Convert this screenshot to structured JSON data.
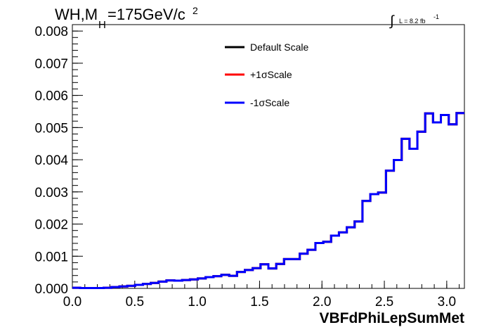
{
  "chart_data": {
    "type": "line",
    "title": {
      "main": "WH,M",
      "subscript": "H",
      "rest": "=175GeV/c",
      "superscript": "2"
    },
    "lumi": {
      "integral": "∫",
      "text": "L = 8.2 fb",
      "superscript": "-1"
    },
    "xlabel": "VBFdPhiLepSumMet",
    "ylabel": "",
    "xlim": [
      0.0,
      3.14159
    ],
    "ylim": [
      0.0,
      0.0082
    ],
    "xticks": [
      "0.0",
      "0.5",
      "1.0",
      "1.5",
      "2.0",
      "2.5",
      "3.0"
    ],
    "xtick_values": [
      0.0,
      0.5,
      1.0,
      1.5,
      2.0,
      2.5,
      3.0
    ],
    "yticks": [
      "0.000",
      "0.001",
      "0.002",
      "0.003",
      "0.004",
      "0.005",
      "0.006",
      "0.007",
      "0.008"
    ],
    "ytick_values": [
      0.0,
      0.001,
      0.002,
      0.003,
      0.004,
      0.005,
      0.006,
      0.007,
      0.008
    ],
    "bins": 50,
    "series": [
      {
        "name": "Default Scale",
        "color": "#000000",
        "values": [
          2e-05,
          1e-05,
          1e-05,
          1e-05,
          2e-05,
          4e-05,
          6e-05,
          8e-05,
          0.00011,
          0.00014,
          0.00017,
          0.00021,
          0.00025,
          0.00024,
          0.00026,
          0.00028,
          0.00031,
          0.00035,
          0.00038,
          0.00042,
          0.00039,
          0.00051,
          0.00057,
          0.00063,
          0.00075,
          0.00062,
          0.00076,
          0.00091,
          0.00091,
          0.00108,
          0.0012,
          0.00141,
          0.00145,
          0.00164,
          0.00174,
          0.0019,
          0.00208,
          0.00272,
          0.00293,
          0.00298,
          0.00366,
          0.00399,
          0.00465,
          0.00434,
          0.00487,
          0.00544,
          0.00516,
          0.00539,
          0.0051,
          0.00545
        ]
      },
      {
        "name": "+1σScale",
        "color": "#ff0000",
        "values": [
          2e-05,
          1e-05,
          1e-05,
          1e-05,
          2e-05,
          4e-05,
          6e-05,
          8e-05,
          0.00011,
          0.00014,
          0.00017,
          0.00021,
          0.00025,
          0.00024,
          0.00026,
          0.00028,
          0.00031,
          0.00035,
          0.00038,
          0.00042,
          0.00039,
          0.00051,
          0.00057,
          0.00063,
          0.00075,
          0.00062,
          0.00076,
          0.00091,
          0.00091,
          0.00108,
          0.0012,
          0.00141,
          0.00145,
          0.00164,
          0.00174,
          0.0019,
          0.00208,
          0.00272,
          0.00293,
          0.00298,
          0.00366,
          0.00399,
          0.00465,
          0.00434,
          0.00487,
          0.00544,
          0.00516,
          0.00539,
          0.0051,
          0.00545
        ]
      },
      {
        "name": "-1σScale",
        "color": "#0000ff",
        "values": [
          2e-05,
          1e-05,
          1e-05,
          1e-05,
          2e-05,
          4e-05,
          6e-05,
          8e-05,
          0.00011,
          0.00014,
          0.00017,
          0.00021,
          0.00025,
          0.00024,
          0.00026,
          0.00028,
          0.00031,
          0.00035,
          0.00038,
          0.00042,
          0.00039,
          0.00051,
          0.00057,
          0.00063,
          0.00075,
          0.00062,
          0.00076,
          0.00091,
          0.00091,
          0.00108,
          0.0012,
          0.00141,
          0.00145,
          0.00164,
          0.00174,
          0.0019,
          0.00208,
          0.00272,
          0.00293,
          0.00298,
          0.00366,
          0.00399,
          0.00465,
          0.00434,
          0.00487,
          0.00544,
          0.00516,
          0.00539,
          0.0051,
          0.00545
        ]
      }
    ],
    "legend": {
      "placement": "top-center",
      "border": false
    },
    "grid": false
  }
}
